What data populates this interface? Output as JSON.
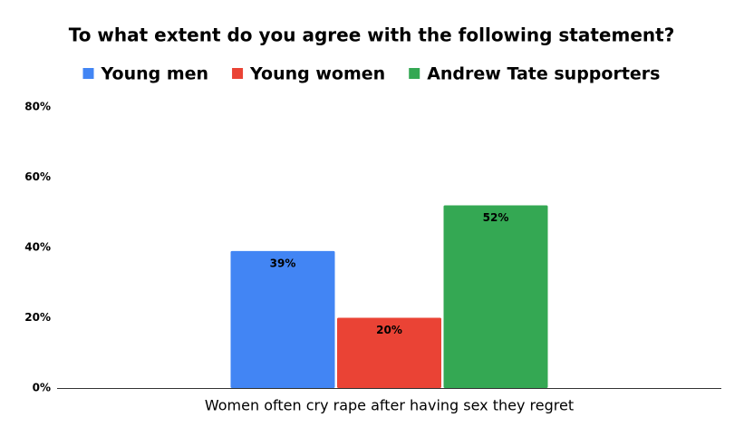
{
  "chart_data": {
    "type": "bar",
    "title": "To what extent do you agree with the following statement?",
    "categories": [
      "Women often cry rape after having sex they regret"
    ],
    "series": [
      {
        "name": "Young men",
        "color": "#4285f4",
        "values": [
          39
        ],
        "value_labels": [
          "39%"
        ]
      },
      {
        "name": "Young women",
        "color": "#ea4335",
        "values": [
          20
        ],
        "value_labels": [
          "20%"
        ]
      },
      {
        "name": "Andrew Tate supporters",
        "color": "#34a853",
        "values": [
          52
        ],
        "value_labels": [
          "52%"
        ]
      }
    ],
    "ylim": [
      0,
      80
    ],
    "yticks": [
      {
        "value": 0,
        "label": "0%"
      },
      {
        "value": 20,
        "label": "20%"
      },
      {
        "value": 40,
        "label": "40%"
      },
      {
        "value": 60,
        "label": "60%"
      },
      {
        "value": 80,
        "label": "80%"
      }
    ],
    "grid": false,
    "legend": "top"
  }
}
